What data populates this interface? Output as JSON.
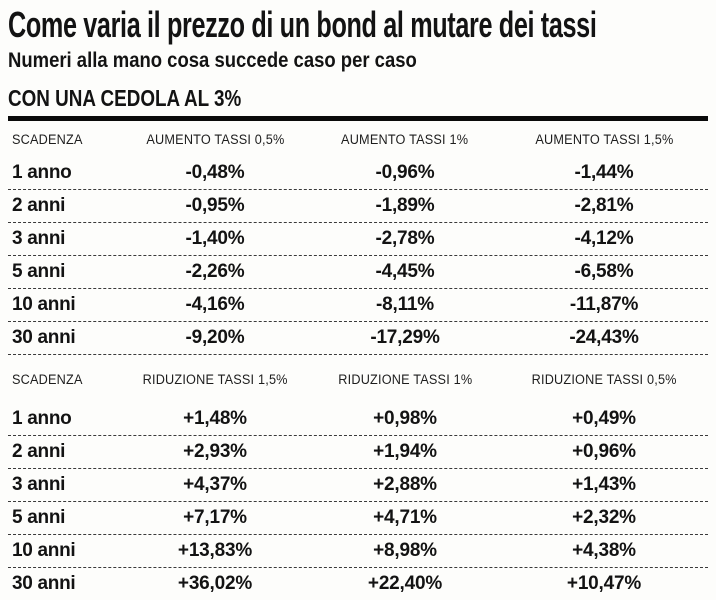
{
  "title": "Come varia il prezzo di un bond al mutare dei tassi",
  "subtitle": "Numeri alla mano cosa succede caso per caso",
  "section": "CON UNA CEDOLA AL 3%",
  "colors": {
    "text": "#131313",
    "rule": "#0a0a0a",
    "background": "#fdfdfb"
  },
  "tables": [
    {
      "headers": [
        "SCADENZA",
        "AUMENTO TASSI 0,5%",
        "AUMENTO TASSI 1%",
        "AUMENTO TASSI 1,5%"
      ],
      "rows": [
        {
          "label": "1 anno",
          "values": [
            "-0,48%",
            "-0,96%",
            "-1,44%"
          ]
        },
        {
          "label": "2 anni",
          "values": [
            "-0,95%",
            "-1,89%",
            "-2,81%"
          ]
        },
        {
          "label": "3 anni",
          "values": [
            "-1,40%",
            "-2,78%",
            "-4,12%"
          ]
        },
        {
          "label": "5 anni",
          "values": [
            "-2,26%",
            "-4,45%",
            "-6,58%"
          ]
        },
        {
          "label": "10 anni",
          "values": [
            "-4,16%",
            "-8,11%",
            "-11,87%"
          ]
        },
        {
          "label": "30 anni",
          "values": [
            "-9,20%",
            "-17,29%",
            "-24,43%"
          ]
        }
      ]
    },
    {
      "headers": [
        "SCADENZA",
        "RIDUZIONE TASSI 1,5%",
        "RIDUZIONE TASSI 1%",
        "RIDUZIONE TASSI 0,5%"
      ],
      "rows": [
        {
          "label": "1 anno",
          "values": [
            "+1,48%",
            "+0,98%",
            "+0,49%"
          ]
        },
        {
          "label": "2 anni",
          "values": [
            "+2,93%",
            "+1,94%",
            "+0,96%"
          ]
        },
        {
          "label": "3 anni",
          "values": [
            "+4,37%",
            "+2,88%",
            "+1,43%"
          ]
        },
        {
          "label": "5 anni",
          "values": [
            "+7,17%",
            "+4,71%",
            "+2,32%"
          ]
        },
        {
          "label": "10 anni",
          "values": [
            "+13,83%",
            "+8,98%",
            "+4,38%"
          ]
        },
        {
          "label": "30 anni",
          "values": [
            "+36,02%",
            "+22,40%",
            "+10,47%"
          ]
        }
      ]
    }
  ]
}
